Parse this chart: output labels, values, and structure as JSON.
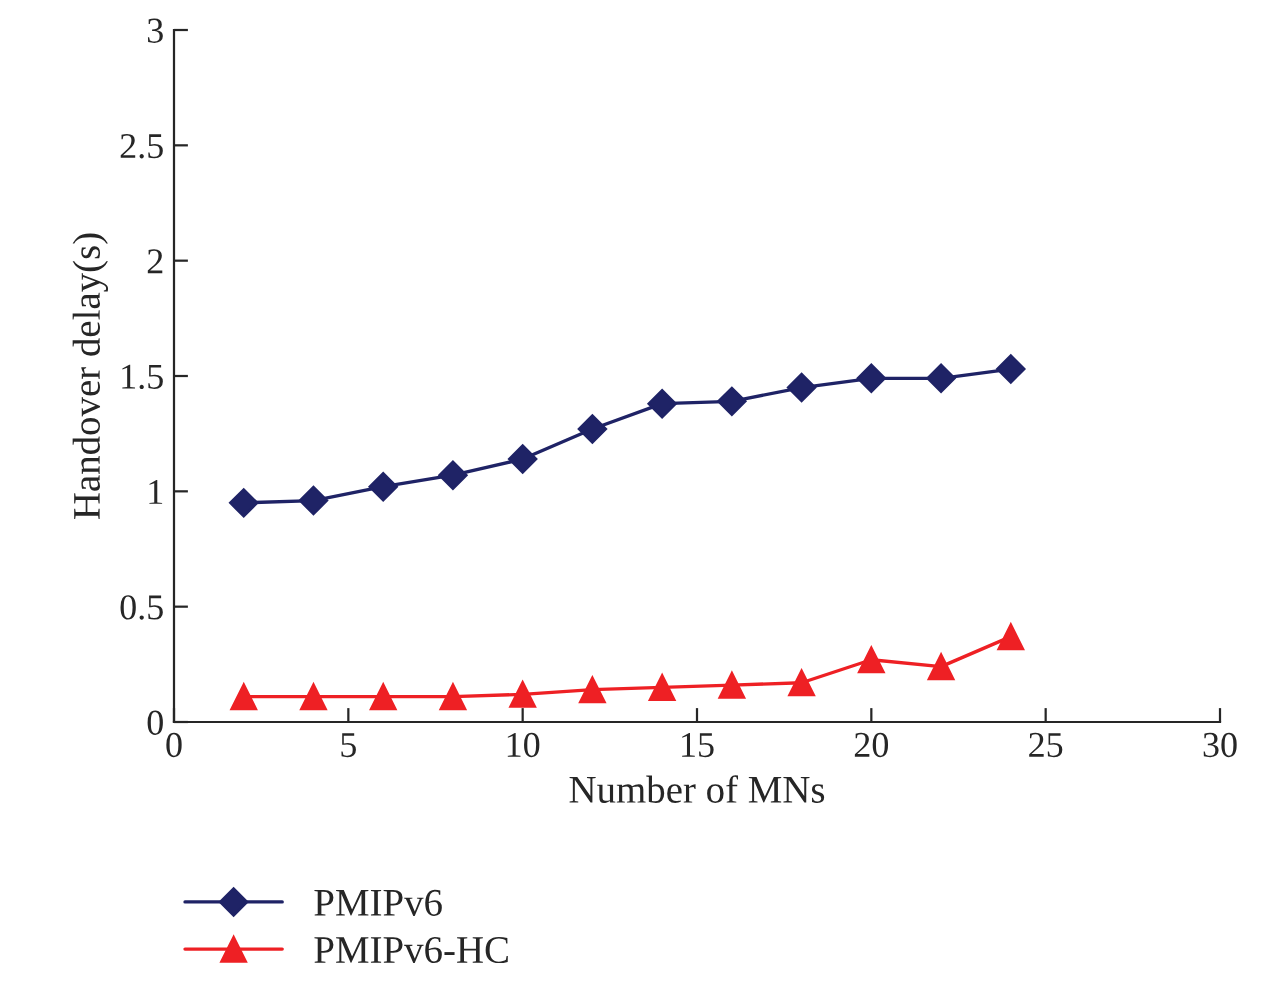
{
  "chart_data": {
    "type": "line",
    "xlabel": "Number of MNs",
    "ylabel": "Handover delay(s)",
    "x": [
      2,
      4,
      6,
      8,
      10,
      12,
      14,
      16,
      18,
      20,
      22,
      24
    ],
    "series": [
      {
        "name": "PMIPv6",
        "color": "#1f2366",
        "marker": "diamond",
        "values": [
          0.95,
          0.96,
          1.02,
          1.07,
          1.14,
          1.27,
          1.38,
          1.39,
          1.45,
          1.49,
          1.49,
          1.53
        ]
      },
      {
        "name": "PMIPv6-HC",
        "color": "#ee2024",
        "marker": "triangle",
        "values": [
          0.11,
          0.11,
          0.11,
          0.11,
          0.12,
          0.14,
          0.15,
          0.16,
          0.17,
          0.27,
          0.24,
          0.37
        ]
      }
    ],
    "xlim": [
      0,
      30
    ],
    "xticks": [
      0,
      5,
      10,
      15,
      20,
      25,
      30
    ],
    "ylim": [
      0,
      3
    ],
    "yticks": [
      0,
      0.5,
      1,
      1.5,
      2,
      2.5,
      3
    ],
    "grid": false,
    "legend": "bottom left",
    "line_style": "solid"
  }
}
